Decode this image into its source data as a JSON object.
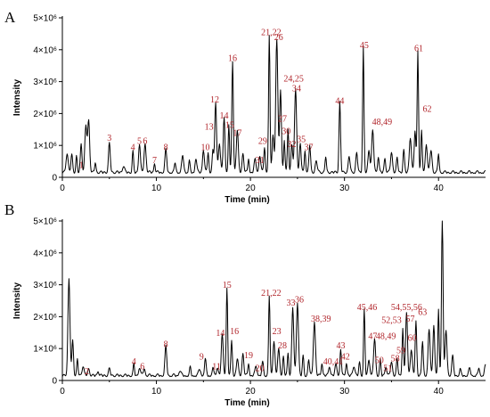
{
  "chart_data": [
    {
      "type": "line",
      "panel_label": "A",
      "xlabel": "Time (min)",
      "ylabel": "Intensity",
      "xlim": [
        0,
        45
      ],
      "ylim": [
        0,
        5000000
      ],
      "x_ticks": [
        "0",
        "10",
        "20",
        "30",
        "40"
      ],
      "y_ticks": [
        "0",
        "1×10⁶",
        "2×10⁶",
        "3×10⁶",
        "4×10⁶",
        "5×10⁶"
      ],
      "grid": false,
      "peaks": [
        {
          "x": 0.5,
          "y": 600000
        },
        {
          "x": 1.0,
          "y": 550000
        },
        {
          "x": 1.5,
          "y": 500000
        },
        {
          "x": 2.0,
          "y": 900000
        },
        {
          "x": 2.5,
          "y": 1450000
        },
        {
          "x": 2.8,
          "y": 1600000
        },
        {
          "x": 3.5,
          "y": 300000
        },
        {
          "x": 5.0,
          "y": 900000
        },
        {
          "x": 6.5,
          "y": 200000
        },
        {
          "x": 7.5,
          "y": 650000
        },
        {
          "x": 8.2,
          "y": 900000
        },
        {
          "x": 8.8,
          "y": 900000
        },
        {
          "x": 9.8,
          "y": 300000
        },
        {
          "x": 11.0,
          "y": 700000
        },
        {
          "x": 12.0,
          "y": 300000
        },
        {
          "x": 12.8,
          "y": 500000
        },
        {
          "x": 13.5,
          "y": 350000
        },
        {
          "x": 14.2,
          "y": 450000
        },
        {
          "x": 15.0,
          "y": 700000
        },
        {
          "x": 15.5,
          "y": 650000
        },
        {
          "x": 16.0,
          "y": 700000
        },
        {
          "x": 16.3,
          "y": 2200000
        },
        {
          "x": 16.7,
          "y": 900000
        },
        {
          "x": 17.2,
          "y": 1750000
        },
        {
          "x": 17.7,
          "y": 1500000
        },
        {
          "x": 18.1,
          "y": 3500000
        },
        {
          "x": 18.6,
          "y": 1300000
        },
        {
          "x": 19.2,
          "y": 600000
        },
        {
          "x": 19.8,
          "y": 450000
        },
        {
          "x": 20.5,
          "y": 400000
        },
        {
          "x": 21.0,
          "y": 500000
        },
        {
          "x": 21.5,
          "y": 800000
        },
        {
          "x": 22.0,
          "y": 4300000
        },
        {
          "x": 22.4,
          "y": 1200000
        },
        {
          "x": 22.8,
          "y": 4200000
        },
        {
          "x": 23.2,
          "y": 2600000
        },
        {
          "x": 23.6,
          "y": 1000000
        },
        {
          "x": 24.0,
          "y": 1350000
        },
        {
          "x": 24.4,
          "y": 850000
        },
        {
          "x": 24.8,
          "y": 2600000
        },
        {
          "x": 25.3,
          "y": 900000
        },
        {
          "x": 25.8,
          "y": 700000
        },
        {
          "x": 26.3,
          "y": 850000
        },
        {
          "x": 27.0,
          "y": 350000
        },
        {
          "x": 28.0,
          "y": 500000
        },
        {
          "x": 29.5,
          "y": 2200000
        },
        {
          "x": 30.5,
          "y": 500000
        },
        {
          "x": 31.3,
          "y": 600000
        },
        {
          "x": 32.0,
          "y": 3950000
        },
        {
          "x": 32.6,
          "y": 700000
        },
        {
          "x": 33.0,
          "y": 1300000
        },
        {
          "x": 33.6,
          "y": 500000
        },
        {
          "x": 34.3,
          "y": 450000
        },
        {
          "x": 35.0,
          "y": 600000
        },
        {
          "x": 35.6,
          "y": 450000
        },
        {
          "x": 36.3,
          "y": 700000
        },
        {
          "x": 37.0,
          "y": 1100000
        },
        {
          "x": 37.5,
          "y": 1300000
        },
        {
          "x": 37.8,
          "y": 3850000
        },
        {
          "x": 38.2,
          "y": 1300000
        },
        {
          "x": 38.7,
          "y": 900000
        },
        {
          "x": 39.2,
          "y": 700000
        },
        {
          "x": 40.0,
          "y": 600000
        }
      ],
      "annotations": [
        {
          "text": "1",
          "x": 2.0,
          "y": 300000
        },
        {
          "text": "3",
          "x": 5.0,
          "y": 1150000
        },
        {
          "text": "4",
          "x": 7.5,
          "y": 850000
        },
        {
          "text": "5",
          "x": 8.2,
          "y": 1050000
        },
        {
          "text": "6",
          "x": 8.8,
          "y": 1050000
        },
        {
          "text": "7",
          "x": 9.8,
          "y": 450000
        },
        {
          "text": "8",
          "x": 11.0,
          "y": 850000
        },
        {
          "text": "10",
          "x": 15.2,
          "y": 850000
        },
        {
          "text": "12",
          "x": 16.2,
          "y": 2350000
        },
        {
          "text": "13",
          "x": 15.6,
          "y": 1500000
        },
        {
          "text": "14",
          "x": 17.2,
          "y": 1850000
        },
        {
          "text": "15",
          "x": 17.8,
          "y": 1550000
        },
        {
          "text": "16",
          "x": 18.1,
          "y": 3650000
        },
        {
          "text": "17",
          "x": 18.6,
          "y": 1300000
        },
        {
          "text": "21,22",
          "x": 22.2,
          "y": 4450000
        },
        {
          "text": "26",
          "x": 23.0,
          "y": 4300000
        },
        {
          "text": "24,25",
          "x": 24.6,
          "y": 3000000
        },
        {
          "text": "34",
          "x": 24.9,
          "y": 2700000
        },
        {
          "text": "27",
          "x": 23.4,
          "y": 1750000
        },
        {
          "text": "30",
          "x": 23.8,
          "y": 1350000
        },
        {
          "text": "29",
          "x": 21.3,
          "y": 1050000
        },
        {
          "text": "32",
          "x": 24.4,
          "y": 950000
        },
        {
          "text": "35",
          "x": 25.4,
          "y": 1100000
        },
        {
          "text": "37",
          "x": 26.2,
          "y": 850000
        },
        {
          "text": "31",
          "x": 21.0,
          "y": 450000
        },
        {
          "text": "44",
          "x": 29.5,
          "y": 2300000
        },
        {
          "text": "45",
          "x": 32.1,
          "y": 4050000
        },
        {
          "text": "48,49",
          "x": 34.0,
          "y": 1650000
        },
        {
          "text": "61",
          "x": 37.9,
          "y": 3950000
        },
        {
          "text": "62",
          "x": 38.8,
          "y": 2050000
        }
      ]
    },
    {
      "type": "line",
      "panel_label": "B",
      "xlabel": "Time (min)",
      "ylabel": "Intensity",
      "xlim": [
        0,
        45
      ],
      "ylim": [
        0,
        5000000
      ],
      "x_ticks": [
        "0",
        "10",
        "20",
        "30",
        "40"
      ],
      "y_ticks": [
        "0",
        "1×10⁶",
        "2×10⁶",
        "3×10⁶",
        "4×10⁶",
        "5×10⁶"
      ],
      "grid": false,
      "peaks": [
        {
          "x": 0.7,
          "y": 3000000
        },
        {
          "x": 1.1,
          "y": 1100000
        },
        {
          "x": 1.6,
          "y": 500000
        },
        {
          "x": 2.2,
          "y": 300000
        },
        {
          "x": 2.8,
          "y": 200000
        },
        {
          "x": 3.8,
          "y": 150000
        },
        {
          "x": 5.0,
          "y": 200000
        },
        {
          "x": 7.6,
          "y": 350000
        },
        {
          "x": 8.2,
          "y": 250000
        },
        {
          "x": 8.7,
          "y": 200000
        },
        {
          "x": 11.0,
          "y": 900000
        },
        {
          "x": 12.5,
          "y": 150000
        },
        {
          "x": 13.6,
          "y": 250000
        },
        {
          "x": 14.6,
          "y": 200000
        },
        {
          "x": 15.2,
          "y": 500000
        },
        {
          "x": 16.0,
          "y": 250000
        },
        {
          "x": 16.5,
          "y": 250000
        },
        {
          "x": 17.0,
          "y": 1250000
        },
        {
          "x": 17.5,
          "y": 2750000
        },
        {
          "x": 18.0,
          "y": 1100000
        },
        {
          "x": 18.6,
          "y": 500000
        },
        {
          "x": 19.2,
          "y": 700000
        },
        {
          "x": 19.8,
          "y": 400000
        },
        {
          "x": 20.6,
          "y": 300000
        },
        {
          "x": 21.3,
          "y": 400000
        },
        {
          "x": 22.0,
          "y": 2500000
        },
        {
          "x": 22.5,
          "y": 1100000
        },
        {
          "x": 23.0,
          "y": 800000
        },
        {
          "x": 23.5,
          "y": 600000
        },
        {
          "x": 24.0,
          "y": 700000
        },
        {
          "x": 24.5,
          "y": 2150000
        },
        {
          "x": 25.0,
          "y": 2300000
        },
        {
          "x": 25.6,
          "y": 600000
        },
        {
          "x": 26.2,
          "y": 500000
        },
        {
          "x": 26.8,
          "y": 1700000
        },
        {
          "x": 27.6,
          "y": 400000
        },
        {
          "x": 28.4,
          "y": 300000
        },
        {
          "x": 29.1,
          "y": 350000
        },
        {
          "x": 29.6,
          "y": 800000
        },
        {
          "x": 30.2,
          "y": 400000
        },
        {
          "x": 31.0,
          "y": 300000
        },
        {
          "x": 31.6,
          "y": 400000
        },
        {
          "x": 32.1,
          "y": 2050000
        },
        {
          "x": 32.6,
          "y": 500000
        },
        {
          "x": 33.2,
          "y": 1150000
        },
        {
          "x": 33.8,
          "y": 500000
        },
        {
          "x": 34.4,
          "y": 300000
        },
        {
          "x": 35.0,
          "y": 400000
        },
        {
          "x": 35.6,
          "y": 500000
        },
        {
          "x": 36.2,
          "y": 1500000
        },
        {
          "x": 36.6,
          "y": 2000000
        },
        {
          "x": 37.1,
          "y": 800000
        },
        {
          "x": 37.6,
          "y": 1700000
        },
        {
          "x": 38.3,
          "y": 1100000
        },
        {
          "x": 39.0,
          "y": 1400000
        },
        {
          "x": 39.5,
          "y": 1600000
        },
        {
          "x": 40.0,
          "y": 2100000
        },
        {
          "x": 40.4,
          "y": 5000000
        },
        {
          "x": 40.8,
          "y": 1400000
        },
        {
          "x": 41.5,
          "y": 600000
        },
        {
          "x": 42.3,
          "y": 200000
        },
        {
          "x": 43.3,
          "y": 200000
        },
        {
          "x": 44.3,
          "y": 250000
        },
        {
          "x": 45.0,
          "y": 300000
        }
      ],
      "annotations": [
        {
          "text": "2",
          "x": 2.6,
          "y": 200000
        },
        {
          "text": "4",
          "x": 7.6,
          "y": 500000
        },
        {
          "text": "6",
          "x": 8.5,
          "y": 350000
        },
        {
          "text": "8",
          "x": 11.0,
          "y": 1050000
        },
        {
          "text": "9",
          "x": 14.8,
          "y": 650000
        },
        {
          "text": "11",
          "x": 16.4,
          "y": 350000
        },
        {
          "text": "14",
          "x": 16.8,
          "y": 1400000
        },
        {
          "text": "15",
          "x": 17.5,
          "y": 2900000
        },
        {
          "text": "16",
          "x": 18.3,
          "y": 1450000
        },
        {
          "text": "19",
          "x": 19.8,
          "y": 700000
        },
        {
          "text": "20",
          "x": 21.0,
          "y": 300000
        },
        {
          "text": "21,22",
          "x": 22.2,
          "y": 2650000
        },
        {
          "text": "23",
          "x": 22.8,
          "y": 1450000
        },
        {
          "text": "28",
          "x": 23.4,
          "y": 1000000
        },
        {
          "text": "33",
          "x": 24.3,
          "y": 2350000
        },
        {
          "text": "36",
          "x": 25.2,
          "y": 2450000
        },
        {
          "text": "38,39",
          "x": 27.5,
          "y": 1850000
        },
        {
          "text": "40,41",
          "x": 28.8,
          "y": 500000
        },
        {
          "text": "43",
          "x": 29.6,
          "y": 1000000
        },
        {
          "text": "42",
          "x": 30.1,
          "y": 650000
        },
        {
          "text": "45,46",
          "x": 32.4,
          "y": 2200000
        },
        {
          "text": "47",
          "x": 33.0,
          "y": 1300000
        },
        {
          "text": "48,49",
          "x": 34.4,
          "y": 1300000
        },
        {
          "text": "50",
          "x": 33.7,
          "y": 550000
        },
        {
          "text": "51",
          "x": 34.6,
          "y": 300000
        },
        {
          "text": "52,53",
          "x": 35.0,
          "y": 1800000
        },
        {
          "text": "54,55,56",
          "x": 36.6,
          "y": 2200000
        },
        {
          "text": "57",
          "x": 37.0,
          "y": 1850000
        },
        {
          "text": "63",
          "x": 38.3,
          "y": 2050000
        },
        {
          "text": "60",
          "x": 37.2,
          "y": 1250000
        },
        {
          "text": "59",
          "x": 36.0,
          "y": 850000
        },
        {
          "text": "58",
          "x": 35.4,
          "y": 600000
        }
      ]
    }
  ]
}
